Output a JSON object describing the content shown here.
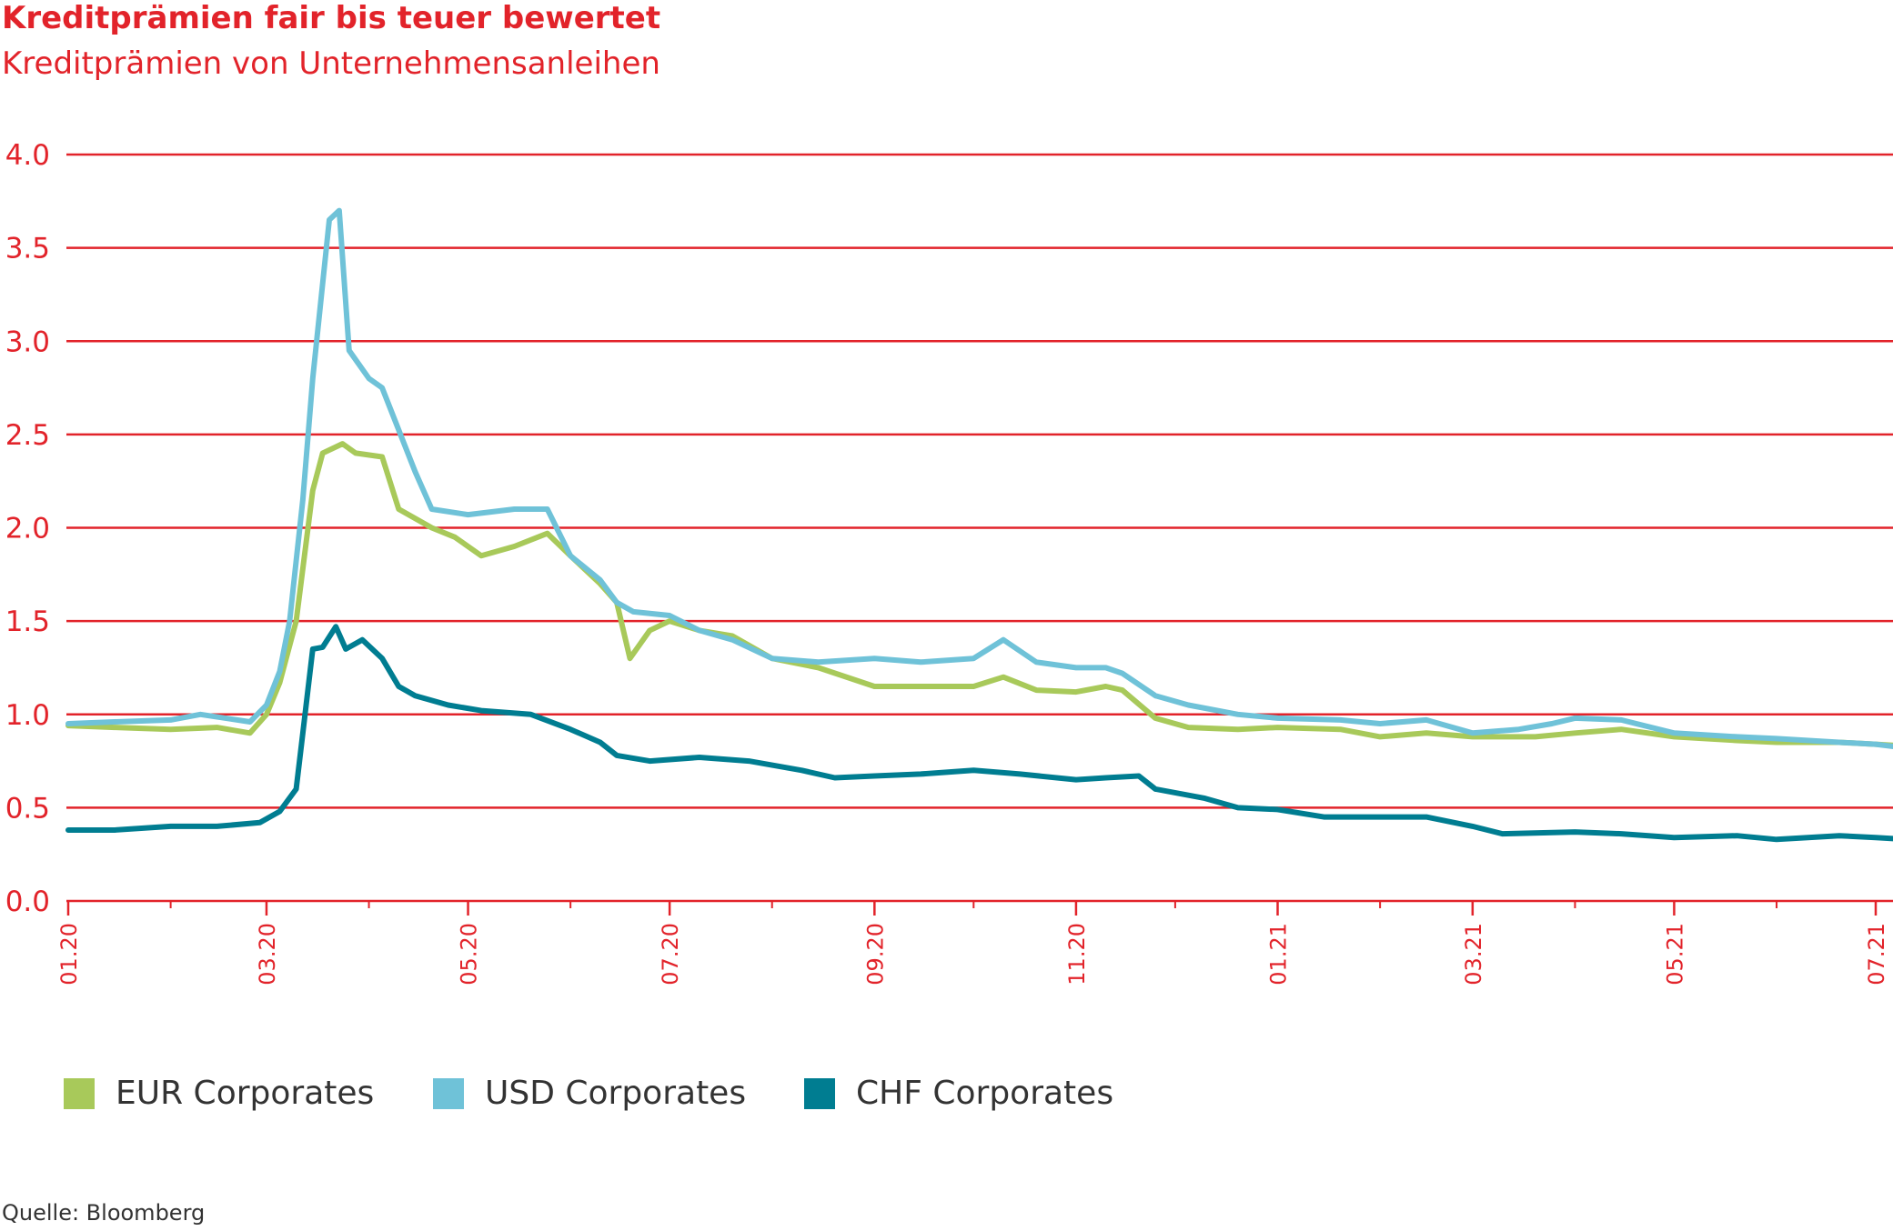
{
  "chart_data": {
    "type": "line",
    "title": "Kreditprämien fair bis teuer bewertet",
    "subtitle": "Kreditprämien von Unternehmensanleihen",
    "source": "Quelle: Bloomberg",
    "ylim": [
      0,
      4
    ],
    "yticks": [
      "0.0",
      "0.5",
      "1.0",
      "1.5",
      "2.0",
      "2.5",
      "3.0",
      "3.5",
      "4.0"
    ],
    "x_ticks": [
      "01.20",
      "03.20",
      "05.20",
      "07.20",
      "09.20",
      "11.20",
      "01.21",
      "03.21",
      "05.21",
      "07.21"
    ],
    "grid": "horizontal",
    "legend_position": "bottom",
    "series": [
      {
        "name": "EUR Corporates",
        "color": "#a8c95a",
        "x": [
          "2020-01-01",
          "2020-01-15",
          "2020-02-01",
          "2020-02-15",
          "2020-02-25",
          "2020-03-01",
          "2020-03-05",
          "2020-03-10",
          "2020-03-15",
          "2020-03-18",
          "2020-03-24",
          "2020-03-28",
          "2020-04-05",
          "2020-04-10",
          "2020-04-20",
          "2020-04-27",
          "2020-05-05",
          "2020-05-15",
          "2020-05-25",
          "2020-06-01",
          "2020-06-10",
          "2020-06-15",
          "2020-06-19",
          "2020-06-25",
          "2020-07-01",
          "2020-07-10",
          "2020-07-20",
          "2020-08-01",
          "2020-08-15",
          "2020-09-01",
          "2020-09-15",
          "2020-10-01",
          "2020-10-10",
          "2020-10-20",
          "2020-11-01",
          "2020-11-10",
          "2020-11-15",
          "2020-11-25",
          "2020-12-05",
          "2020-12-20",
          "2021-01-01",
          "2021-01-20",
          "2021-02-01",
          "2021-02-15",
          "2021-03-01",
          "2021-03-20",
          "2021-04-01",
          "2021-04-15",
          "2021-05-01",
          "2021-05-20",
          "2021-06-01",
          "2021-06-20",
          "2021-07-01",
          "2021-07-10"
        ],
        "values": [
          0.94,
          0.93,
          0.92,
          0.93,
          0.9,
          1.0,
          1.17,
          1.5,
          2.2,
          2.4,
          2.45,
          2.4,
          2.38,
          2.1,
          2.0,
          1.95,
          1.85,
          1.9,
          1.97,
          1.85,
          1.7,
          1.6,
          1.3,
          1.45,
          1.5,
          1.45,
          1.42,
          1.3,
          1.25,
          1.15,
          1.15,
          1.15,
          1.2,
          1.13,
          1.12,
          1.15,
          1.13,
          0.98,
          0.93,
          0.92,
          0.93,
          0.92,
          0.88,
          0.9,
          0.88,
          0.88,
          0.9,
          0.92,
          0.88,
          0.86,
          0.85,
          0.85,
          0.84,
          0.83
        ]
      },
      {
        "name": "USD Corporates",
        "color": "#6fc2d8",
        "x": [
          "2020-01-01",
          "2020-01-15",
          "2020-02-01",
          "2020-02-10",
          "2020-02-25",
          "2020-03-01",
          "2020-03-05",
          "2020-03-08",
          "2020-03-12",
          "2020-03-15",
          "2020-03-20",
          "2020-03-23",
          "2020-03-26",
          "2020-04-01",
          "2020-04-05",
          "2020-04-15",
          "2020-04-20",
          "2020-05-01",
          "2020-05-15",
          "2020-05-25",
          "2020-06-01",
          "2020-06-10",
          "2020-06-15",
          "2020-06-20",
          "2020-07-01",
          "2020-07-10",
          "2020-07-20",
          "2020-08-01",
          "2020-08-15",
          "2020-09-01",
          "2020-09-15",
          "2020-10-01",
          "2020-10-10",
          "2020-10-20",
          "2020-11-01",
          "2020-11-10",
          "2020-11-15",
          "2020-11-25",
          "2020-12-05",
          "2020-12-20",
          "2021-01-01",
          "2021-01-20",
          "2021-02-01",
          "2021-02-15",
          "2021-03-01",
          "2021-03-15",
          "2021-03-25",
          "2021-04-01",
          "2021-04-15",
          "2021-05-01",
          "2021-05-20",
          "2021-06-01",
          "2021-06-20",
          "2021-07-01",
          "2021-07-10"
        ],
        "values": [
          0.95,
          0.96,
          0.97,
          1.0,
          0.96,
          1.05,
          1.23,
          1.5,
          2.15,
          2.8,
          3.65,
          3.7,
          2.95,
          2.8,
          2.75,
          2.3,
          2.1,
          2.07,
          2.1,
          2.1,
          1.85,
          1.72,
          1.6,
          1.55,
          1.53,
          1.45,
          1.4,
          1.3,
          1.28,
          1.3,
          1.28,
          1.3,
          1.4,
          1.28,
          1.25,
          1.25,
          1.22,
          1.1,
          1.05,
          1.0,
          0.98,
          0.97,
          0.95,
          0.97,
          0.9,
          0.92,
          0.95,
          0.98,
          0.97,
          0.9,
          0.88,
          0.87,
          0.85,
          0.84,
          0.82
        ]
      },
      {
        "name": "CHF Corporates",
        "color": "#007d91",
        "x": [
          "2020-01-01",
          "2020-01-15",
          "2020-02-01",
          "2020-02-15",
          "2020-02-28",
          "2020-03-05",
          "2020-03-10",
          "2020-03-12",
          "2020-03-15",
          "2020-03-18",
          "2020-03-22",
          "2020-03-25",
          "2020-03-30",
          "2020-04-05",
          "2020-04-10",
          "2020-04-15",
          "2020-04-25",
          "2020-05-05",
          "2020-05-20",
          "2020-06-01",
          "2020-06-10",
          "2020-06-15",
          "2020-06-25",
          "2020-07-10",
          "2020-07-25",
          "2020-08-10",
          "2020-08-20",
          "2020-09-01",
          "2020-09-15",
          "2020-10-01",
          "2020-10-15",
          "2020-11-01",
          "2020-11-10",
          "2020-11-20",
          "2020-11-25",
          "2020-12-10",
          "2020-12-20",
          "2021-01-01",
          "2021-01-15",
          "2021-02-01",
          "2021-02-15",
          "2021-03-01",
          "2021-03-10",
          "2021-04-01",
          "2021-04-15",
          "2021-05-01",
          "2021-05-20",
          "2021-06-01",
          "2021-06-20",
          "2021-07-01",
          "2021-07-10"
        ],
        "values": [
          0.38,
          0.38,
          0.4,
          0.4,
          0.42,
          0.48,
          0.6,
          0.9,
          1.35,
          1.36,
          1.47,
          1.35,
          1.4,
          1.3,
          1.15,
          1.1,
          1.05,
          1.02,
          1.0,
          0.92,
          0.85,
          0.78,
          0.75,
          0.77,
          0.75,
          0.7,
          0.66,
          0.67,
          0.68,
          0.7,
          0.68,
          0.65,
          0.66,
          0.67,
          0.6,
          0.55,
          0.5,
          0.49,
          0.45,
          0.45,
          0.45,
          0.4,
          0.36,
          0.37,
          0.36,
          0.34,
          0.35,
          0.33,
          0.35,
          0.34,
          0.33
        ]
      }
    ]
  }
}
